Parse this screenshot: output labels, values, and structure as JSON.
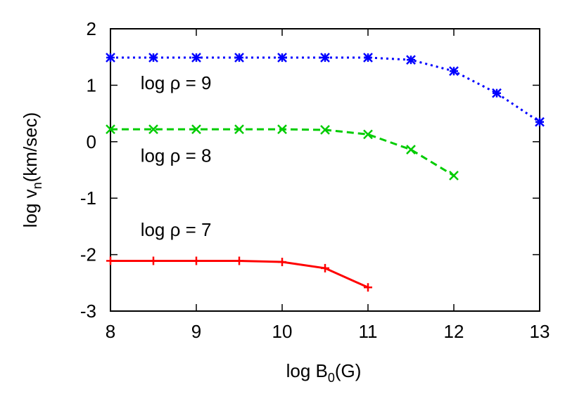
{
  "chart_data": {
    "type": "line",
    "title": "",
    "xlabel": {
      "main": "log B",
      "sub": "0",
      "tail": "(G)"
    },
    "ylabel": {
      "main": "log v",
      "sub": "n",
      "tail": "(km/sec)"
    },
    "xlim": [
      8,
      13
    ],
    "ylim": [
      -3,
      2
    ],
    "xticks": [
      8,
      9,
      10,
      11,
      12,
      13
    ],
    "yticks": [
      -3,
      -2,
      -1,
      0,
      1,
      2
    ],
    "grid": false,
    "series": [
      {
        "color": "#0000ff",
        "dash": "dotted",
        "marker": "asterisk",
        "x": [
          8,
          8.5,
          9,
          9.5,
          10,
          10.5,
          11,
          11.5,
          12,
          12.5,
          13
        ],
        "y": [
          1.49,
          1.49,
          1.49,
          1.49,
          1.49,
          1.49,
          1.49,
          1.45,
          1.25,
          0.86,
          0.35
        ]
      },
      {
        "color": "#00cc00",
        "dash": "dashed",
        "marker": "x",
        "x": [
          8,
          8.5,
          9,
          9.5,
          10,
          10.5,
          11,
          11.5,
          12
        ],
        "y": [
          0.22,
          0.22,
          0.22,
          0.22,
          0.22,
          0.21,
          0.13,
          -0.14,
          -0.6
        ]
      },
      {
        "color": "#ff0000",
        "dash": "solid",
        "marker": "plus",
        "x": [
          8,
          8.5,
          9,
          9.5,
          10,
          10.5,
          11
        ],
        "y": [
          -2.11,
          -2.11,
          -2.11,
          -2.11,
          -2.13,
          -2.24,
          -2.58
        ]
      }
    ],
    "annotations": [
      {
        "text": "log ρ = 9",
        "x": 8.35,
        "y": 0.93
      },
      {
        "text": "log ρ = 8",
        "x": 8.35,
        "y": -0.36
      },
      {
        "text": "log ρ = 7",
        "x": 8.35,
        "y": -1.67
      }
    ]
  }
}
